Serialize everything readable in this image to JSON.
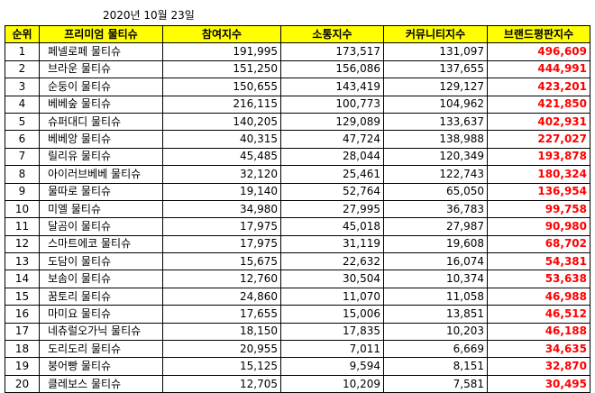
{
  "date": "2020년 10월 23일",
  "headers": [
    "순위",
    "프리미엄 물티슈",
    "참여지수",
    "소통지수",
    "커뮤니티지수",
    "브랜드평판지수"
  ],
  "rows": [
    {
      "rank": "1",
      "name": "페넬로페 물티슈",
      "participation": "191,995",
      "communication": "173,517",
      "community": "131,097",
      "brand": "496,609"
    },
    {
      "rank": "2",
      "name": "브라운 물티슈",
      "participation": "151,250",
      "communication": "156,086",
      "community": "137,655",
      "brand": "444,991"
    },
    {
      "rank": "3",
      "name": "순둥이 물티슈",
      "participation": "150,655",
      "communication": "143,419",
      "community": "129,127",
      "brand": "423,201"
    },
    {
      "rank": "4",
      "name": "베베숲 물티슈",
      "participation": "216,115",
      "communication": "100,773",
      "community": "104,962",
      "brand": "421,850"
    },
    {
      "rank": "5",
      "name": "슈퍼대디 물티슈",
      "participation": "140,205",
      "communication": "129,089",
      "community": "133,637",
      "brand": "402,931"
    },
    {
      "rank": "6",
      "name": "베베앙 물티슈",
      "participation": "40,315",
      "communication": "47,724",
      "community": "138,988",
      "brand": "227,027"
    },
    {
      "rank": "7",
      "name": "릴리유 물티슈",
      "participation": "45,485",
      "communication": "28,044",
      "community": "120,349",
      "brand": "193,878"
    },
    {
      "rank": "8",
      "name": "아이러브베베 물티슈",
      "participation": "32,120",
      "communication": "25,461",
      "community": "122,743",
      "brand": "180,324"
    },
    {
      "rank": "9",
      "name": "물따로 물티슈",
      "participation": "19,140",
      "communication": "52,764",
      "community": "65,050",
      "brand": "136,954"
    },
    {
      "rank": "10",
      "name": "미엘 물티슈",
      "participation": "34,980",
      "communication": "27,995",
      "community": "36,783",
      "brand": "99,758"
    },
    {
      "rank": "11",
      "name": "달곰이 물티슈",
      "participation": "17,975",
      "communication": "45,018",
      "community": "27,987",
      "brand": "90,980"
    },
    {
      "rank": "12",
      "name": "스마트에코 물티슈",
      "participation": "17,975",
      "communication": "31,119",
      "community": "19,608",
      "brand": "68,702"
    },
    {
      "rank": "13",
      "name": "도담이 물티슈",
      "participation": "15,675",
      "communication": "22,632",
      "community": "16,074",
      "brand": "54,381"
    },
    {
      "rank": "14",
      "name": "보솜이 물티슈",
      "participation": "12,760",
      "communication": "30,504",
      "community": "10,374",
      "brand": "53,638"
    },
    {
      "rank": "15",
      "name": "꿈토리 물티슈",
      "participation": "24,860",
      "communication": "11,070",
      "community": "11,058",
      "brand": "46,988"
    },
    {
      "rank": "16",
      "name": "마미요 물티슈",
      "participation": "17,655",
      "communication": "15,006",
      "community": "13,851",
      "brand": "46,512"
    },
    {
      "rank": "17",
      "name": "네츄럴오가닉 물티슈",
      "participation": "18,150",
      "communication": "17,835",
      "community": "10,203",
      "brand": "46,188"
    },
    {
      "rank": "18",
      "name": "도리도리 물티슈",
      "participation": "20,955",
      "communication": "7,011",
      "community": "6,669",
      "brand": "34,635"
    },
    {
      "rank": "19",
      "name": "붕어빵 물티슈",
      "participation": "15,125",
      "communication": "9,594",
      "community": "8,151",
      "brand": "32,870"
    },
    {
      "rank": "20",
      "name": "클레보스 물티슈",
      "participation": "12,705",
      "communication": "10,209",
      "community": "7,581",
      "brand": "30,495"
    }
  ],
  "colors": {
    "header_bg": "#ffff00",
    "brand_value": "#ff0000"
  }
}
